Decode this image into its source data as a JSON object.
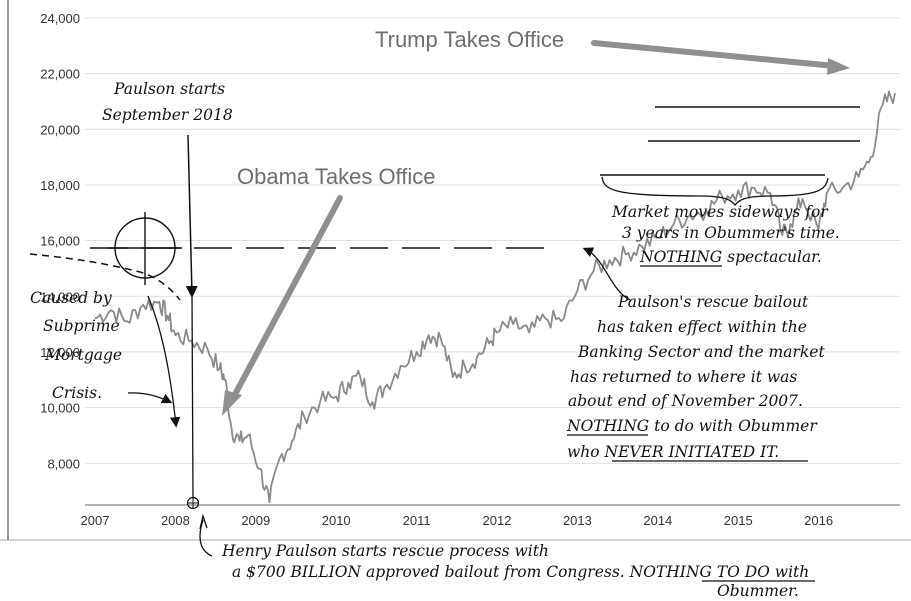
{
  "chart_data": {
    "type": "line",
    "title": "",
    "xlabel": "",
    "ylabel": "",
    "ylim": [
      6500,
      24000
    ],
    "xlim": [
      2007.0,
      2016.95
    ],
    "yticks": [
      24000,
      22000,
      20000,
      18000,
      16000,
      14000,
      12000,
      10000,
      8000
    ],
    "yticklabels": [
      "24,000",
      "22,000",
      "20,000",
      "18,000",
      "16,000",
      "14,000",
      "12,000",
      "10,000",
      "8,000"
    ],
    "xticks": [
      2007,
      2008,
      2009,
      2010,
      2011,
      2012,
      2013,
      2014,
      2015,
      2016
    ],
    "xticklabels": [
      "2007",
      "2008",
      "2009",
      "2010",
      "2011",
      "2012",
      "2013",
      "2014",
      "2015",
      "2016"
    ],
    "grid": true,
    "line_color": "#8a8a8a",
    "series": [
      {
        "x": [
          2007.0,
          2007.2,
          2007.4,
          2007.6,
          2007.8,
          2007.9,
          2008.0,
          2008.2,
          2008.4,
          2008.55,
          2008.62,
          2008.7,
          2008.8,
          2008.9,
          2009.05,
          2009.17,
          2009.3,
          2009.45,
          2009.6,
          2009.8,
          2010.0,
          2010.15,
          2010.3,
          2010.45,
          2010.6,
          2010.8,
          2011.0,
          2011.15,
          2011.3,
          2011.45,
          2011.6,
          2011.75,
          2011.9,
          2012.0,
          2012.2,
          2012.4,
          2012.6,
          2012.8,
          2013.0,
          2013.2,
          2013.4,
          2013.6,
          2013.8,
          2014.0,
          2014.2,
          2014.4,
          2014.6,
          2014.8,
          2015.0,
          2015.2,
          2015.4,
          2015.55,
          2015.65,
          2015.8,
          2016.0,
          2016.1,
          2016.3,
          2016.5,
          2016.65,
          2016.8,
          2016.95
        ],
        "y": [
          13200,
          13500,
          13100,
          13700,
          13800,
          13300,
          12600,
          12400,
          12100,
          11400,
          11000,
          9200,
          8800,
          9000,
          7800,
          6600,
          8200,
          8800,
          9700,
          10200,
          10400,
          10900,
          11100,
          10200,
          10700,
          11500,
          12000,
          12600,
          12500,
          11100,
          11500,
          11800,
          12300,
          12700,
          13000,
          12700,
          13200,
          13100,
          14200,
          14900,
          15300,
          15500,
          15800,
          16100,
          16600,
          16900,
          17100,
          17600,
          17800,
          17900,
          17700,
          16200,
          16600,
          17500,
          16400,
          17700,
          17900,
          18300,
          19000,
          20900,
          21300
        ]
      }
    ],
    "annotations": {
      "obama": "Obama Takes Office",
      "trump": "Trump Takes Office",
      "paulson_start": [
        "Paulson starts",
        "September 2018"
      ],
      "caused_by": [
        "Caused by",
        "Subprime",
        "Mortgage",
        "Crisis."
      ],
      "sideways": [
        "Market moves sideways for",
        "3 years in Obummer's time.",
        "NOTHING spectacular."
      ],
      "rescue": [
        "Paulson's rescue bailout",
        "has taken effect within the",
        "Banking Sector and the market",
        "has returned to where it was",
        "about end of November 2007.",
        "NOTHING to do with Obummer",
        "who NEVER INITIATED IT."
      ],
      "henry": [
        "Henry Paulson starts rescue process with",
        "a $700 BILLION approved bailout from Congress. NOTHING TO DO with",
        "Obummer."
      ]
    }
  }
}
